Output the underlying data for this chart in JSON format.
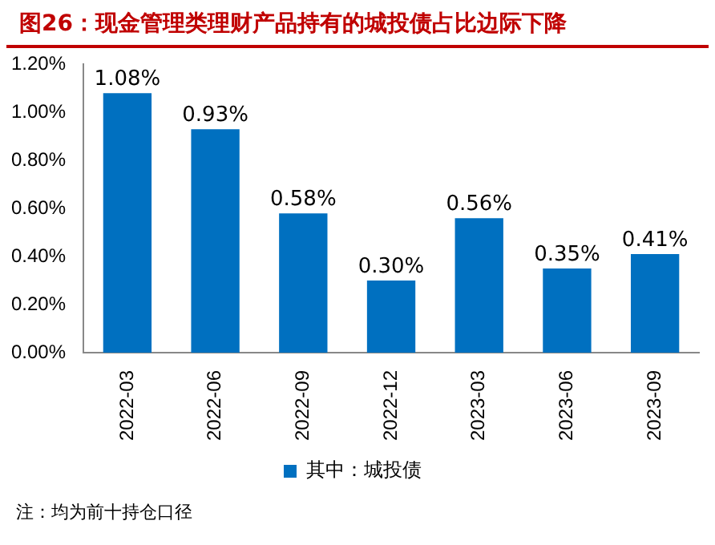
{
  "chart_data": {
    "type": "bar",
    "title": "图26：现金管理类理财产品持有的城投债占比边际下降",
    "categories": [
      "2022-03",
      "2022-06",
      "2022-09",
      "2022-12",
      "2023-03",
      "2023-06",
      "2023-09"
    ],
    "series": [
      {
        "name": "其中：城投债",
        "color": "#0070c0",
        "values": [
          1.08,
          0.93,
          0.58,
          0.3,
          0.56,
          0.35,
          0.41
        ],
        "value_labels": [
          "1.08%",
          "0.93%",
          "0.58%",
          "0.30%",
          "0.56%",
          "0.35%",
          "0.41%"
        ]
      }
    ],
    "ylim": [
      0,
      1.2
    ],
    "yticks": [
      {
        "value": 0,
        "label": "0.00%"
      },
      {
        "value": 0.2,
        "label": "0.20%"
      },
      {
        "value": 0.4,
        "label": "0.40%"
      },
      {
        "value": 0.6,
        "label": "0.60%"
      },
      {
        "value": 0.8,
        "label": "0.80%"
      },
      {
        "value": 1.0,
        "label": "1.00%"
      },
      {
        "value": 1.2,
        "label": "1.20%"
      }
    ],
    "grid": false,
    "legend": "bottom",
    "annotations": [
      "注：均为前十持仓口径"
    ]
  }
}
